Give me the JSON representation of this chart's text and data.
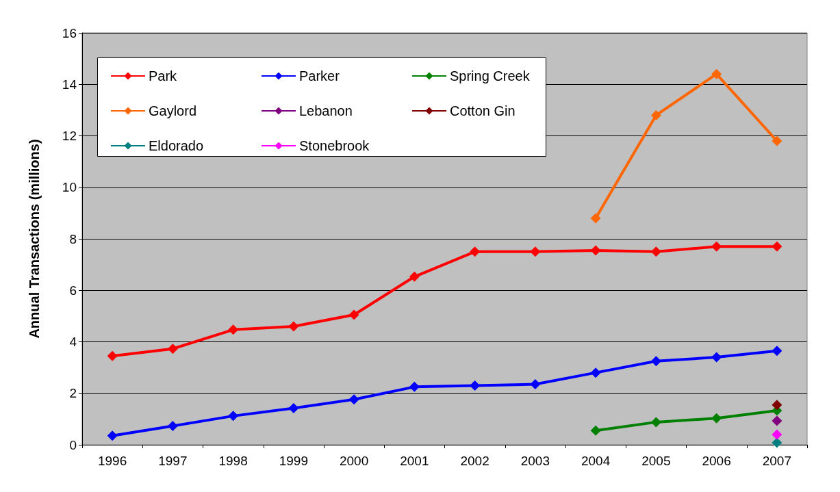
{
  "chart_data": {
    "type": "line",
    "ylabel": "Annual Transactions (millions)",
    "categories": [
      "1996",
      "1997",
      "1998",
      "1999",
      "2000",
      "2001",
      "2002",
      "2003",
      "2004",
      "2005",
      "2006",
      "2007"
    ],
    "series": [
      {
        "name": "Park",
        "color": "#ff0000",
        "values": [
          3.45,
          3.73,
          4.47,
          4.6,
          5.05,
          6.53,
          7.5,
          7.5,
          7.55,
          7.5,
          7.7,
          7.7
        ]
      },
      {
        "name": "Parker",
        "color": "#0000ff",
        "values": [
          0.35,
          0.73,
          1.12,
          1.42,
          1.76,
          2.25,
          2.3,
          2.35,
          2.8,
          3.25,
          3.4,
          3.65
        ]
      },
      {
        "name": "Spring Creek",
        "color": "#008000",
        "values": [
          null,
          null,
          null,
          null,
          null,
          null,
          null,
          null,
          0.55,
          0.88,
          1.03,
          1.33
        ]
      },
      {
        "name": "Gaylord",
        "color": "#ff6600",
        "values": [
          null,
          null,
          null,
          null,
          null,
          null,
          null,
          null,
          8.8,
          12.8,
          14.4,
          11.8
        ]
      },
      {
        "name": "Lebanon",
        "color": "#800080",
        "values": [
          null,
          null,
          null,
          null,
          null,
          null,
          null,
          null,
          null,
          null,
          null,
          0.93
        ]
      },
      {
        "name": "Cotton Gin",
        "color": "#800000",
        "values": [
          null,
          null,
          null,
          null,
          null,
          null,
          null,
          null,
          null,
          null,
          null,
          1.55
        ]
      },
      {
        "name": "Eldorado",
        "color": "#008080",
        "values": [
          null,
          null,
          null,
          null,
          null,
          null,
          null,
          null,
          null,
          null,
          null,
          0.08
        ]
      },
      {
        "name": "Stonebrook",
        "color": "#ff00ff",
        "values": [
          null,
          null,
          null,
          null,
          null,
          null,
          null,
          null,
          null,
          null,
          null,
          0.4
        ]
      }
    ],
    "ylim": [
      0,
      16
    ],
    "yticks": [
      0,
      2,
      4,
      6,
      8,
      10,
      12,
      14,
      16
    ],
    "grid": "y",
    "legend": "top left",
    "marker": "diamond"
  }
}
